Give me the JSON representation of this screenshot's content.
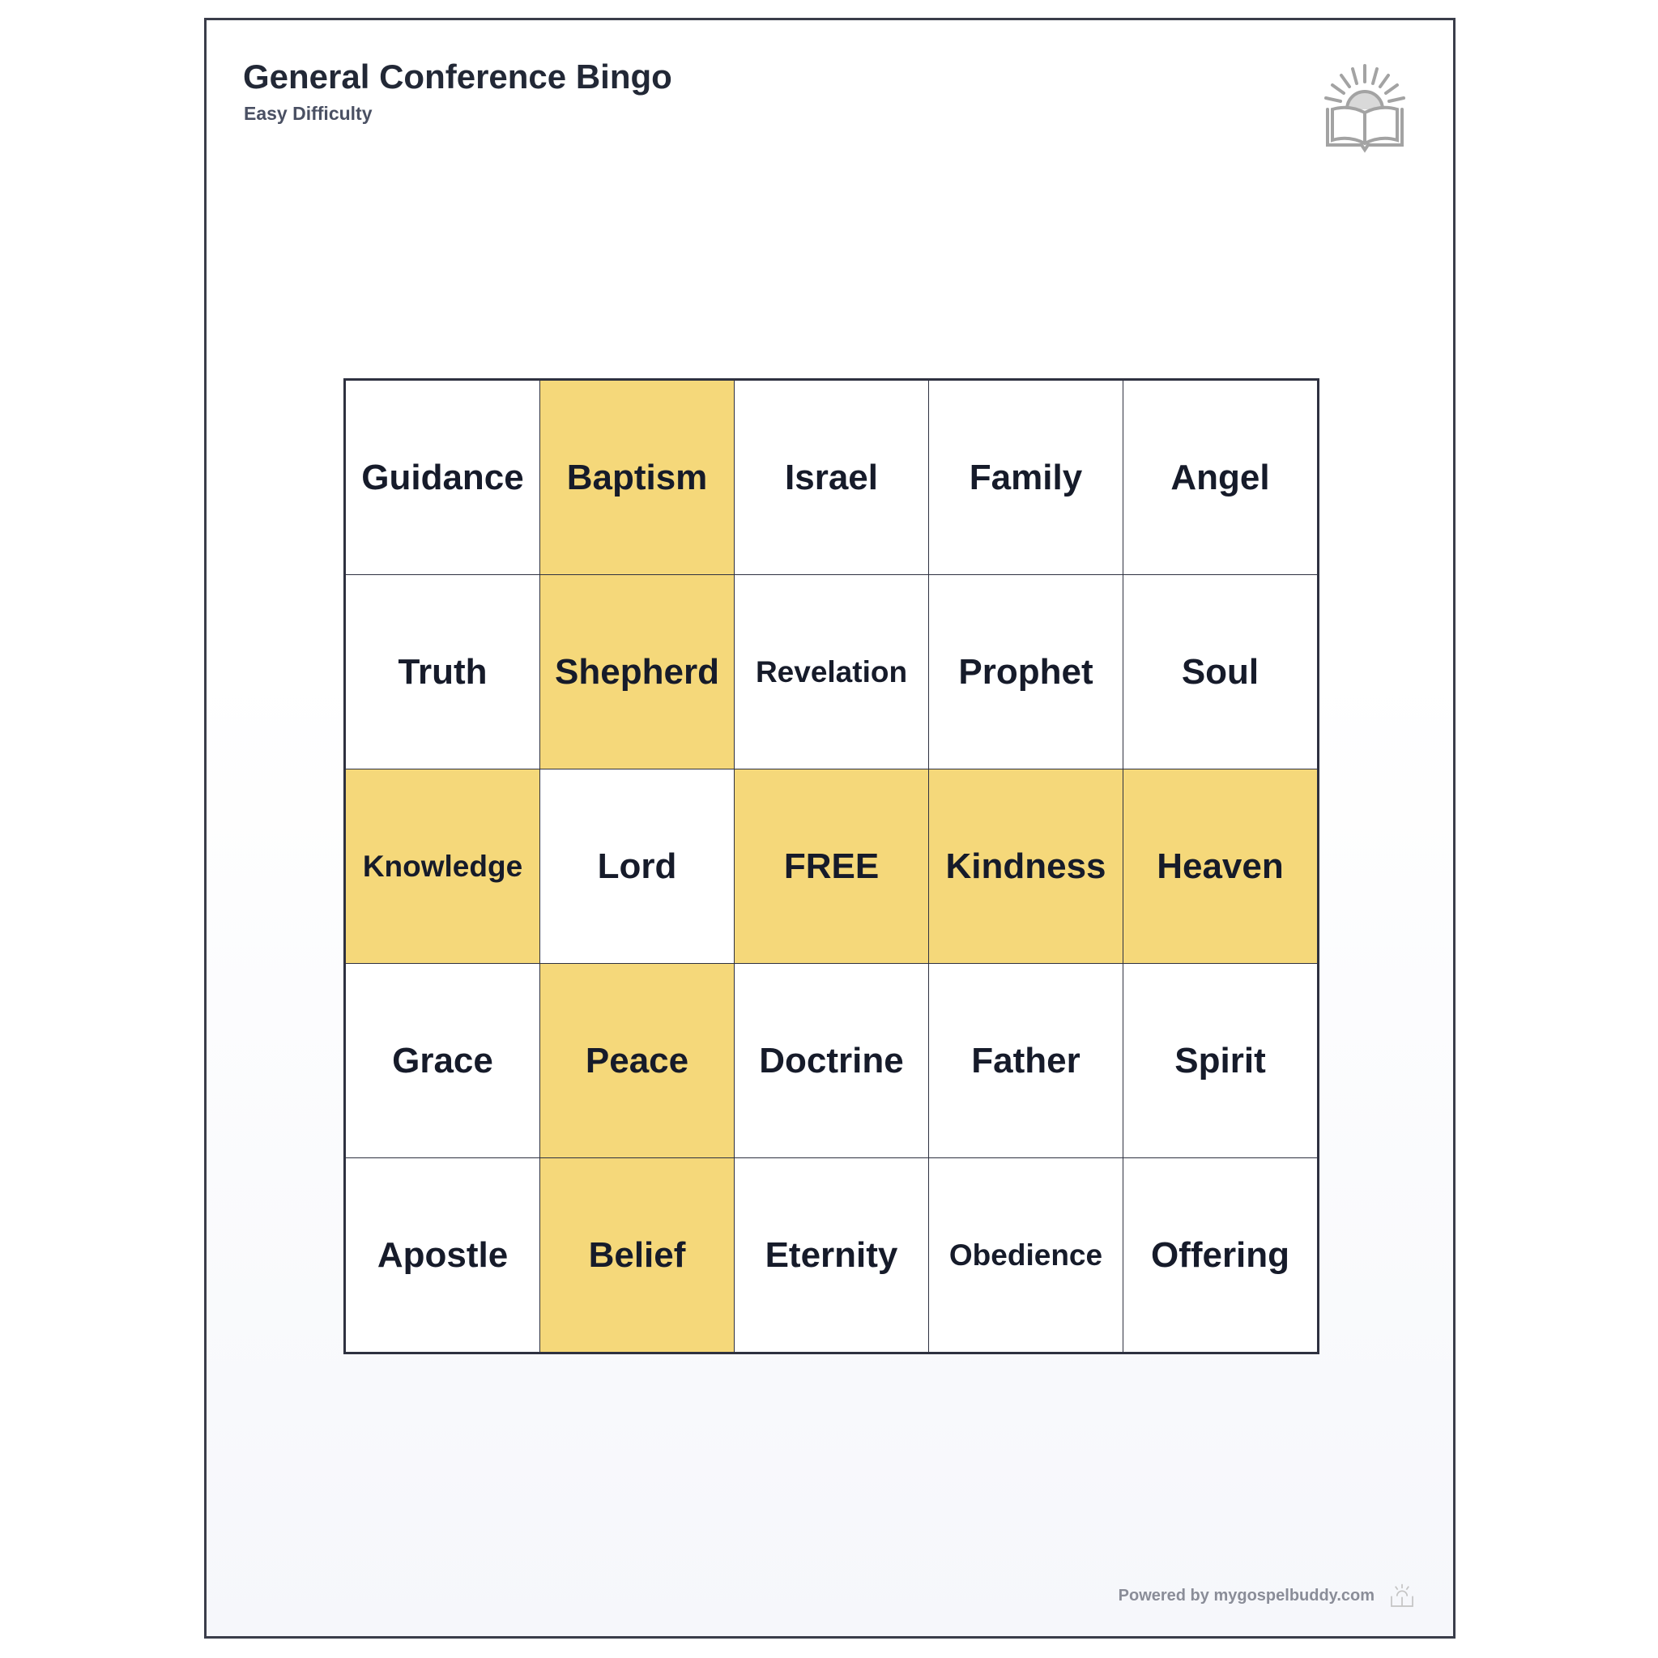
{
  "header": {
    "title": "General Conference Bingo",
    "subtitle": "Easy Difficulty"
  },
  "grid": {
    "rows": [
      [
        {
          "label": "Guidance",
          "marked": false
        },
        {
          "label": "Baptism",
          "marked": true
        },
        {
          "label": "Israel",
          "marked": false
        },
        {
          "label": "Family",
          "marked": false
        },
        {
          "label": "Angel",
          "marked": false
        }
      ],
      [
        {
          "label": "Truth",
          "marked": false
        },
        {
          "label": "Shepherd",
          "marked": true
        },
        {
          "label": "Revelation",
          "marked": false
        },
        {
          "label": "Prophet",
          "marked": false
        },
        {
          "label": "Soul",
          "marked": false
        }
      ],
      [
        {
          "label": "Knowledge",
          "marked": true
        },
        {
          "label": "Lord",
          "marked": false
        },
        {
          "label": "FREE",
          "marked": true
        },
        {
          "label": "Kindness",
          "marked": true
        },
        {
          "label": "Heaven",
          "marked": true
        }
      ],
      [
        {
          "label": "Grace",
          "marked": false
        },
        {
          "label": "Peace",
          "marked": true
        },
        {
          "label": "Doctrine",
          "marked": false
        },
        {
          "label": "Father",
          "marked": false
        },
        {
          "label": "Spirit",
          "marked": false
        }
      ],
      [
        {
          "label": "Apostle",
          "marked": false
        },
        {
          "label": "Belief",
          "marked": true
        },
        {
          "label": "Eternity",
          "marked": false
        },
        {
          "label": "Obedience",
          "marked": false
        },
        {
          "label": "Offering",
          "marked": false
        }
      ]
    ]
  },
  "footer": {
    "text": "Powered by mygospelbuddy.com"
  }
}
